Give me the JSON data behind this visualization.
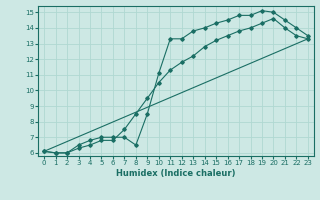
{
  "title": "",
  "xlabel": "Humidex (Indice chaleur)",
  "ylabel": "",
  "xlim": [
    -0.5,
    23.5
  ],
  "ylim": [
    5.8,
    15.4
  ],
  "xticks": [
    0,
    1,
    2,
    3,
    4,
    5,
    6,
    7,
    8,
    9,
    10,
    11,
    12,
    13,
    14,
    15,
    16,
    17,
    18,
    19,
    20,
    21,
    22,
    23
  ],
  "yticks": [
    6,
    7,
    8,
    9,
    10,
    11,
    12,
    13,
    14,
    15
  ],
  "bg_color": "#cde8e4",
  "grid_color": "#b0d8d2",
  "line_color": "#1a6e64",
  "line1_x": [
    0,
    1,
    2,
    3,
    4,
    5,
    6,
    7,
    8,
    9,
    10,
    11,
    12,
    13,
    14,
    15,
    16,
    17,
    18,
    19,
    20,
    21,
    22,
    23
  ],
  "line1_y": [
    6.1,
    6.0,
    6.0,
    6.5,
    6.8,
    7.0,
    7.0,
    7.0,
    6.5,
    8.5,
    11.1,
    13.3,
    13.3,
    13.8,
    14.0,
    14.3,
    14.5,
    14.8,
    14.8,
    15.1,
    15.0,
    14.5,
    14.0,
    13.5
  ],
  "line2_x": [
    0,
    1,
    2,
    3,
    4,
    5,
    6,
    7,
    8,
    9,
    10,
    11,
    12,
    13,
    14,
    15,
    16,
    17,
    18,
    19,
    20,
    21,
    22,
    23
  ],
  "line2_y": [
    6.1,
    6.0,
    6.0,
    6.3,
    6.5,
    6.8,
    6.8,
    7.5,
    8.5,
    9.5,
    10.5,
    11.3,
    11.8,
    12.2,
    12.8,
    13.2,
    13.5,
    13.8,
    14.0,
    14.3,
    14.6,
    14.0,
    13.5,
    13.3
  ],
  "line3_x": [
    0,
    23
  ],
  "line3_y": [
    6.1,
    13.3
  ]
}
